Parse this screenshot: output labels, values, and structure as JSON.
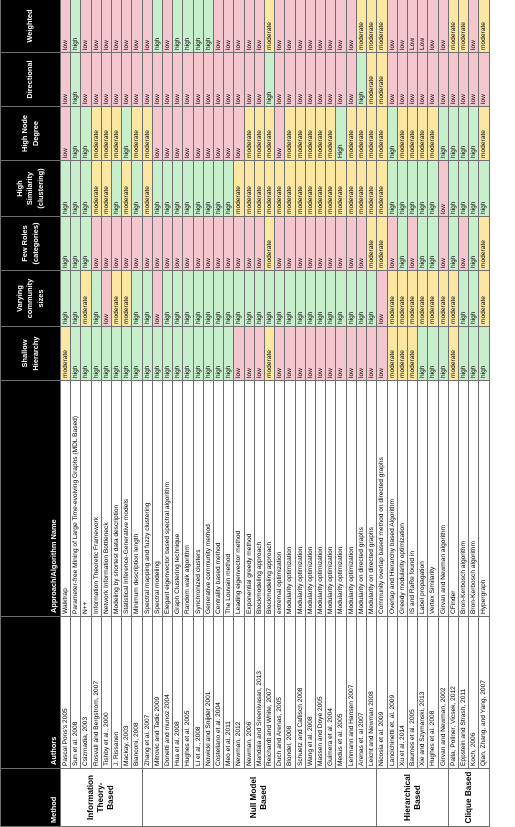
{
  "headers": [
    "Method",
    "Authors",
    "Approach/Algorithm Name",
    "Shallow Hierarchy",
    "Varying community sizes",
    "Few Roles (categories)",
    "High Similarity (clustering)",
    "High Node Degree",
    "Directional",
    "Weighted"
  ],
  "groups": [
    {
      "label": "Information Theory-Based",
      "rows": [
        {
          "author": "Pascal Pons's 2005",
          "approach": "Walktrap",
          "values": [
            "moderate",
            "high",
            "high",
            "high",
            "low",
            "low",
            "low"
          ]
        },
        {
          "author": "Sun et al. 2008",
          "approach": "Parameter-free Mining of Large Time-evolving Graphs (MDL Based)",
          "values": [
            "high",
            "high",
            "high",
            "high",
            "high",
            "high",
            "high"
          ]
        },
        {
          "author": "Csizmadia, 2003",
          "approach": "N++",
          "values": [
            "high",
            "moderate",
            "high",
            "high",
            "high",
            "low",
            "low"
          ]
        },
        {
          "author": "Rosvall and Bergstrom, 2007",
          "approach": "Information Theoretic Framework",
          "values": [
            "high",
            "high",
            "low",
            "moderate",
            "moderate",
            "low",
            "low"
          ]
        },
        {
          "author": "Tishby et al., 2000",
          "approach": "Network Information Bottleneck",
          "values": [
            "high",
            "low",
            "low",
            "moderate",
            "moderate",
            "low",
            "low"
          ]
        },
        {
          "author": "J. Rissanen",
          "approach": "Modeling by shortest data description",
          "values": [
            "high",
            "moderate",
            "low",
            "high",
            "moderate",
            "low",
            "low"
          ]
        },
        {
          "author": "Mackay, 2003",
          "approach": "Statistical Inference-Generative models",
          "values": [
            "high",
            "moderate",
            "low",
            "moderate",
            "high",
            "low",
            "low"
          ]
        },
        {
          "author": "Bianconi, 2008",
          "approach": "Minimum description length",
          "values": [
            "high",
            "high",
            "low",
            "high",
            "moderate",
            "low",
            "low"
          ]
        }
      ]
    },
    {
      "label": "Null Model Based",
      "rows": [
        {
          "author": "Zhang et al. 2007",
          "approach": "Spectral mapping and fuzzy clustering",
          "values": [
            "high",
            "high",
            "low",
            "moderate",
            "moderate",
            "low",
            "low"
          ]
        },
        {
          "author": "Mitrovic and Tadic 2009",
          "approach": "Spectral modeling",
          "values": [
            "high",
            "low",
            "low",
            "high",
            "low",
            "low",
            "high"
          ]
        },
        {
          "author": "Donetti and munoz 2004",
          "approach": "Elegant eigenvector based spectral algorithm",
          "values": [
            "high",
            "high",
            "low",
            "high",
            "low",
            "low",
            "low"
          ]
        },
        {
          "author": "Hua et al. 2008",
          "approach": "Graph Clustering technique",
          "values": [
            "high",
            "high",
            "low",
            "high",
            "low",
            "low",
            "high"
          ]
        },
        {
          "author": "Hughes et al. 2005",
          "approach": "Random walk algorithm",
          "values": [
            "high",
            "high",
            "low",
            "high",
            "low",
            "low",
            "high"
          ]
        },
        {
          "author": "Li et al., 2008",
          "approach": "Synchronized clusters",
          "values": [
            "high",
            "high",
            "low",
            "high",
            "low",
            "low",
            "high"
          ]
        },
        {
          "author": "Nowicki and Snijder 2001",
          "approach": "Generative community method",
          "values": [
            "high",
            "high",
            "low",
            "high",
            "low",
            "low",
            "high"
          ]
        },
        {
          "author": "Costellano et al. 2004",
          "approach": "Centrality based method",
          "values": [
            "high",
            "high",
            "low",
            "high",
            "low",
            "low",
            "low"
          ]
        },
        {
          "author": "Meo et al. 2011",
          "approach": "The Louvain method",
          "values": [
            "high",
            "high",
            "low",
            "high",
            "low",
            "low",
            "low"
          ]
        },
        {
          "author": "Newman, 2012",
          "approach": "Leading eigenvector method",
          "values": [
            "low",
            "high",
            "low",
            "moderate",
            "low",
            "low",
            "low"
          ]
        },
        {
          "author": "Newman, 2006",
          "approach": "Exponential greedy method",
          "values": [
            "low",
            "high",
            "low",
            "moderate",
            "moderate",
            "low",
            "low"
          ]
        },
        {
          "author": "Mandala and Sreenivasan, 2013",
          "approach": "Blockmodeling approach",
          "values": [
            "low",
            "high",
            "low",
            "moderate",
            "moderate",
            "low",
            "low"
          ]
        },
        {
          "author": "Reichardt and White, 2007",
          "approach": "Blockmodeling approach",
          "values": [
            "moderate",
            "high",
            "moderate",
            "moderate",
            "moderate",
            "high",
            "moderate"
          ]
        },
        {
          "author": "Duch and Arenas, 2005",
          "approach": "extremal optimization",
          "values": [
            "low",
            "high",
            "low",
            "moderate",
            "low",
            "low",
            "low"
          ]
        },
        {
          "author": "Blondel, 2008",
          "approach": "Modularity optimization",
          "values": [
            "low",
            "high",
            "low",
            "moderate",
            "moderate",
            "low",
            "low"
          ]
        },
        {
          "author": "Schuetz and Caflisch 2008",
          "approach": "Modularity optimization",
          "values": [
            "low",
            "high",
            "low",
            "moderate",
            "moderate",
            "low",
            "low"
          ]
        },
        {
          "author": "Wang et al. 2008",
          "approach": "Modularity optimization",
          "values": [
            "low",
            "high",
            "low",
            "moderate",
            "moderate",
            "low",
            "low"
          ]
        },
        {
          "author": "Massen and Doye 2005",
          "approach": "Modularity optimization",
          "values": [
            "low",
            "high",
            "low",
            "moderate",
            "moderate",
            "low",
            "low"
          ]
        },
        {
          "author": "Guimera et al. 2004",
          "approach": "Modularity optimization",
          "values": [
            "low",
            "high",
            "low",
            "moderate",
            "moderate",
            "low",
            "low"
          ]
        },
        {
          "author": "Medus et al. 2005",
          "approach": "Modularity optimization",
          "values": [
            "low",
            "high",
            "low",
            "moderate",
            "High",
            "low",
            "low"
          ]
        },
        {
          "author": "Lehmann and Hansen 2007",
          "approach": "Modularity optimization",
          "values": [
            "low",
            "high",
            "low",
            "moderate",
            "moderate",
            "low",
            "low"
          ]
        },
        {
          "author": "Arenas et. al 2007",
          "approach": "Modularity on directed graphs",
          "values": [
            "low",
            "high",
            "low",
            "moderate",
            "moderate",
            "high",
            "moderate"
          ]
        },
        {
          "author": "Leicht and Newman 2008",
          "approach": "Modularity on directed graphs",
          "values": [
            "low",
            "high",
            "moderate",
            "moderate",
            "moderate",
            "moderate",
            "moderate"
          ]
        }
      ]
    },
    {
      "label": "Hierarchical Based",
      "rows": [
        {
          "author": "Nicosia et al. 2009",
          "approach": "Community overlap based method on directed graphs",
          "values": [
            "low",
            "low",
            "moderate",
            "moderate",
            "moderate",
            "moderate",
            "moderate"
          ]
        },
        {
          "author": "Lancichinetti et. al. 2009",
          "approach": "Overlap and Hierarchy based Algorithm",
          "values": [
            "moderate",
            "moderate",
            "low",
            "high",
            "high",
            "low",
            "low"
          ]
        },
        {
          "author": "Xu et al. 2014",
          "approach": "Greedy modularity optimization",
          "values": [
            "moderate",
            "moderate",
            "high",
            "high",
            "moderate",
            "low",
            "low"
          ]
        },
        {
          "author": "Baumes et al. 2005",
          "approach": "IS and RaRe found in",
          "values": [
            "moderate",
            "moderate",
            "low",
            "high",
            "moderate",
            "low",
            "Low"
          ]
        },
        {
          "author": "Xie and Szymanski, 2013",
          "approach": "Label propagation",
          "values": [
            "high",
            "moderate",
            "high",
            "high",
            "moderate",
            "low",
            "Low"
          ]
        },
        {
          "author": "Hughes et al. 2008",
          "approach": "Vertex Similarity",
          "values": [
            "high",
            "moderate",
            "high",
            "high",
            "moderate",
            "low",
            "low"
          ]
        },
        {
          "author": "Girvan and Newman, 2002",
          "approach": "Girvan and Newman algorithm",
          "values": [
            "high",
            "moderate",
            "low",
            "low",
            "high",
            "low",
            "low"
          ]
        }
      ]
    },
    {
      "label": "Clique Based",
      "rows": [
        {
          "author": "Palla, Pollner, Vicsek, 2012",
          "approach": "CFinder",
          "values": [
            "moderate",
            "moderate",
            "high",
            "high",
            "high",
            "low",
            "moderate"
          ]
        },
        {
          "author": "Eppstein and Strash, 2011",
          "approach": "Bron-Kerbosch algorithm",
          "values": [
            "high",
            "high",
            "low",
            "high",
            "high",
            "low",
            "moderate"
          ]
        },
        {
          "author": "Koch, 2006",
          "approach": "Bron-Kerbosch algorithm",
          "values": [
            "high",
            "high",
            "high",
            "high",
            "high",
            "low",
            "low"
          ]
        },
        {
          "author": "Qian, Zhang, and Yang, 2007",
          "approach": "Hypergraph",
          "values": [
            "high",
            "moderate",
            "moderate",
            "high",
            "moderate",
            "low",
            "moderate"
          ]
        }
      ]
    }
  ],
  "colors": {
    "low": "#f4c7ce",
    "moderate": "#fbe7a2",
    "high": "#c8efcc",
    "header": "#000000"
  }
}
